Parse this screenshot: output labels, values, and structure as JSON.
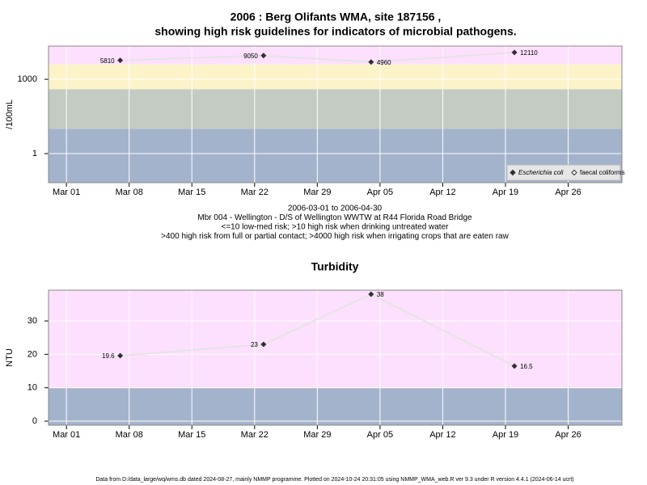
{
  "chart_data": [
    {
      "type": "line",
      "title": "2006 : Berg Olifants WMA, site 187156 ,",
      "subtitle": "showing high risk guidelines for indicators of microbial pathogens.",
      "notes": [
        "2006-03-01 to 2006-04-30",
        "Mbr 004 - Wellington - D/S of Wellington WWTW at R44 Florida Road Bridge",
        "<=10 low-med risk; >10 high risk when drinking untreated water",
        ">400 high risk from full or partial contact; >4000 high risk when irrigating crops that are eaten raw"
      ],
      "ylabel": "/100mL",
      "log_scale": true,
      "grid": true,
      "legend": "bottom-right",
      "line_color": "#e4e4e4",
      "x": [
        "2006-03-07",
        "2006-03-23",
        "2006-04-04",
        "2006-04-20"
      ],
      "series": [
        {
          "name": "Escherichia coli",
          "color": "#303030",
          "values": [
            5810,
            9050,
            4960,
            12110
          ]
        },
        {
          "name": "faecal coliforms",
          "color": "#303030",
          "values": [
            null,
            null,
            null,
            null
          ]
        }
      ],
      "xlim": [
        "2006-02-27",
        "2006-05-02"
      ],
      "xticks": [
        {
          "value": "2006-03-01",
          "label": "Mar 01"
        },
        {
          "value": "2006-03-08",
          "label": "Mar 08"
        },
        {
          "value": "2006-03-15",
          "label": "Mar 15"
        },
        {
          "value": "2006-03-22",
          "label": "Mar 22"
        },
        {
          "value": "2006-03-29",
          "label": "Mar 29"
        },
        {
          "value": "2006-04-05",
          "label": "Apr 05"
        },
        {
          "value": "2006-04-12",
          "label": "Apr 12"
        },
        {
          "value": "2006-04-19",
          "label": "Apr 19"
        },
        {
          "value": "2006-04-26",
          "label": "Apr 26"
        }
      ],
      "ylim": [
        0.067,
        21900
      ],
      "yticks": [
        1,
        1000
      ],
      "bands": [
        {
          "to": 10,
          "color": "#a3b3cb"
        },
        {
          "from": 10,
          "to": 400,
          "color": "#c3cbc3"
        },
        {
          "from": 400,
          "to": 4000,
          "color": "#fdf3c8"
        },
        {
          "from": 4000,
          "color": "#fde0fd"
        }
      ]
    },
    {
      "type": "line",
      "title": "Turbidity",
      "ylabel": "NTU",
      "grid": true,
      "line_color": "#e4e4e4",
      "x": [
        "2006-03-07",
        "2006-03-23",
        "2006-04-04",
        "2006-04-20"
      ],
      "series": [
        {
          "name": "Turbidity",
          "color": "#303030",
          "values": [
            19.6,
            23,
            38,
            16.5
          ]
        }
      ],
      "xlim": [
        "2006-02-27",
        "2006-05-02"
      ],
      "xticks": [
        {
          "value": "2006-03-01",
          "label": "Mar 01"
        },
        {
          "value": "2006-03-08",
          "label": "Mar 08"
        },
        {
          "value": "2006-03-15",
          "label": "Mar 15"
        },
        {
          "value": "2006-03-22",
          "label": "Mar 22"
        },
        {
          "value": "2006-03-29",
          "label": "Mar 29"
        },
        {
          "value": "2006-04-05",
          "label": "Apr 05"
        },
        {
          "value": "2006-04-12",
          "label": "Apr 12"
        },
        {
          "value": "2006-04-19",
          "label": "Apr 19"
        },
        {
          "value": "2006-04-26",
          "label": "Apr 26"
        }
      ],
      "ylim": [
        -1.2,
        39.2
      ],
      "yticks": [
        0,
        10,
        20,
        30
      ],
      "bands": [
        {
          "to": 10,
          "color": "#a3b3cb"
        },
        {
          "from": 10,
          "color": "#fde0fd"
        }
      ]
    }
  ],
  "footer": "Data from D:/data_large/wq/wms.db dated 2024-08-27, mainly NMMP programme. Plotted on 2024-10-24 20:31:05 using NMMP_WMA_web.R ver 9.3 under R version 4.4.1 (2024-06-14 ucrt)"
}
